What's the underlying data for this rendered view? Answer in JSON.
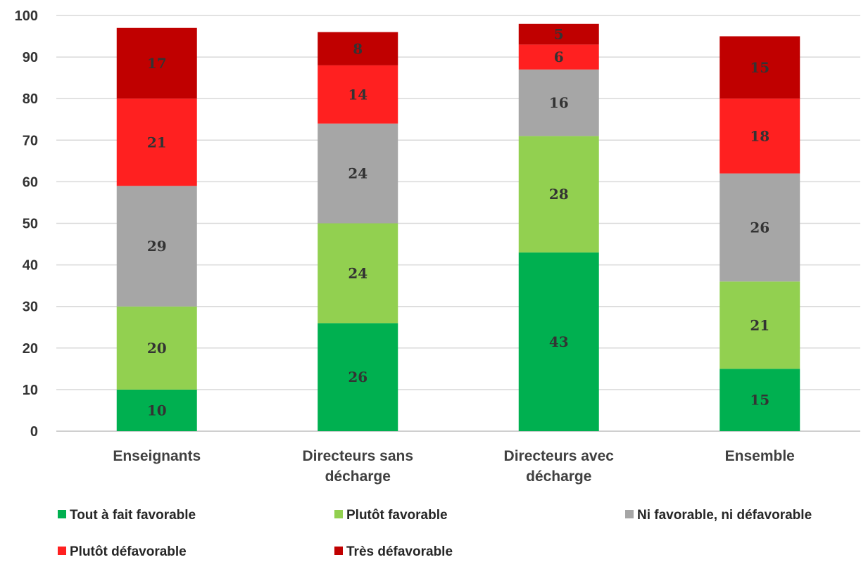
{
  "chart_data": {
    "type": "bar",
    "stacked": true,
    "title": "",
    "xlabel": "",
    "ylabel": "",
    "ylim": [
      0,
      100
    ],
    "yticks": [
      0,
      10,
      20,
      30,
      40,
      50,
      60,
      70,
      80,
      90,
      100
    ],
    "grid": true,
    "legend_position": "bottom",
    "categories": [
      [
        "Enseignants"
      ],
      [
        "Directeurs sans",
        "décharge"
      ],
      [
        "Directeurs avec",
        "décharge"
      ],
      [
        "Ensemble"
      ]
    ],
    "series": [
      {
        "name": "Tout à fait favorable",
        "color": "#00b050",
        "values": [
          10,
          26,
          43,
          15
        ]
      },
      {
        "name": "Plutôt favorable",
        "color": "#92d050",
        "values": [
          20,
          24,
          28,
          21
        ]
      },
      {
        "name": "Ni favorable, ni défavorable",
        "color": "#a6a6a6",
        "values": [
          29,
          24,
          16,
          26
        ]
      },
      {
        "name": "Plutôt défavorable",
        "color": "#ff2020",
        "values": [
          21,
          14,
          6,
          18
        ]
      },
      {
        "name": "Très défavorable",
        "color": "#c00000",
        "values": [
          17,
          8,
          5,
          15
        ]
      }
    ]
  }
}
